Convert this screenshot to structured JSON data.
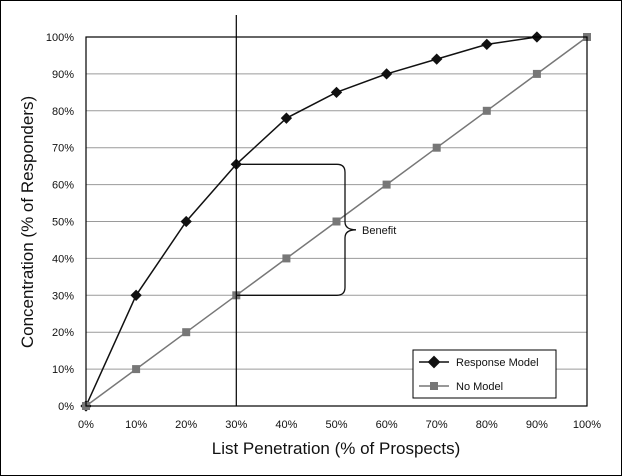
{
  "chart_data": {
    "type": "line",
    "title": "",
    "xlabel": "List Penetration (% of Prospects)",
    "ylabel": "Concentration (% of Responders)",
    "x": [
      0,
      10,
      20,
      30,
      40,
      50,
      60,
      70,
      80,
      90,
      100
    ],
    "x_tick_labels": [
      "0%",
      "10%",
      "20%",
      "30%",
      "40%",
      "50%",
      "60%",
      "70%",
      "80%",
      "90%",
      "100%"
    ],
    "y_tick_labels": [
      "0%",
      "10%",
      "20%",
      "30%",
      "40%",
      "50%",
      "60%",
      "70%",
      "80%",
      "90%",
      "100%"
    ],
    "xlim": [
      0,
      100
    ],
    "ylim": [
      0,
      100
    ],
    "grid": "horizontal",
    "legend_position": "bottom-right",
    "series": [
      {
        "name": "Response Model",
        "marker": "diamond",
        "color": "#111111",
        "x": [
          0,
          10,
          20,
          30,
          40,
          50,
          60,
          70,
          80,
          90
        ],
        "values": [
          0,
          30,
          50,
          65.5,
          78,
          85,
          90,
          94,
          98,
          100
        ]
      },
      {
        "name": "No Model",
        "marker": "square",
        "color": "#777777",
        "x": [
          0,
          10,
          20,
          30,
          40,
          50,
          60,
          70,
          80,
          90,
          100
        ],
        "values": [
          0,
          10,
          20,
          30,
          40,
          50,
          60,
          70,
          80,
          90,
          100
        ]
      }
    ],
    "reference_line": {
      "x": 30
    },
    "annotation": {
      "label": "Benefit",
      "x": 30,
      "y_top": 65.5,
      "y_bottom": 30
    }
  }
}
